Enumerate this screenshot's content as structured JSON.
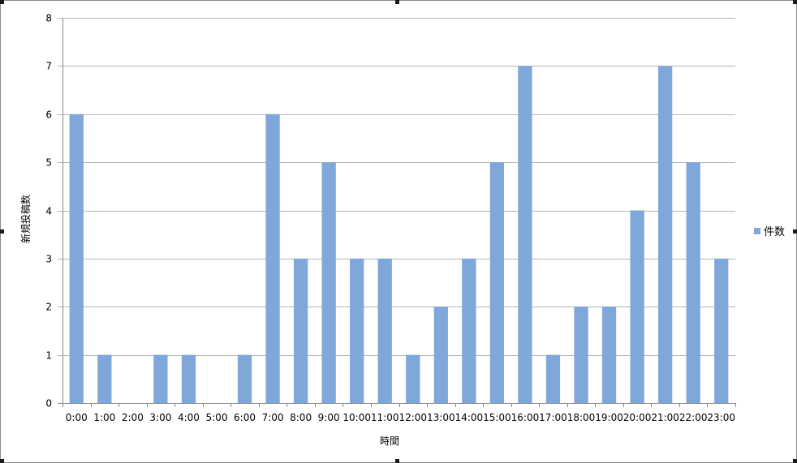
{
  "chart_data": {
    "type": "bar",
    "categories": [
      "0:00",
      "1:00",
      "2:00",
      "3:00",
      "4:00",
      "5:00",
      "6:00",
      "7:00",
      "8:00",
      "9:00",
      "10:00",
      "11:00",
      "12:00",
      "13:00",
      "14:00",
      "15:00",
      "16:00",
      "17:00",
      "18:00",
      "19:00",
      "20:00",
      "21:00",
      "22:00",
      "23:00"
    ],
    "series": [
      {
        "name": "件数",
        "values": [
          6,
          1,
          0,
          1,
          1,
          0,
          1,
          6,
          3,
          5,
          3,
          3,
          1,
          2,
          3,
          5,
          7,
          1,
          2,
          2,
          4,
          7,
          5,
          3
        ],
        "color": "#7fa7d9"
      }
    ],
    "title": "",
    "xlabel": "時間",
    "ylabel": "新規投稿数",
    "ylim": [
      0,
      8
    ],
    "yticks": [
      0,
      1,
      2,
      3,
      4,
      5,
      6,
      7,
      8
    ],
    "grid": true,
    "legend_position": "right"
  },
  "colors": {
    "bar": "#7fa7d9",
    "grid": "#b4b4b4",
    "axis": "#868686",
    "frame": "#8c8c8c"
  }
}
